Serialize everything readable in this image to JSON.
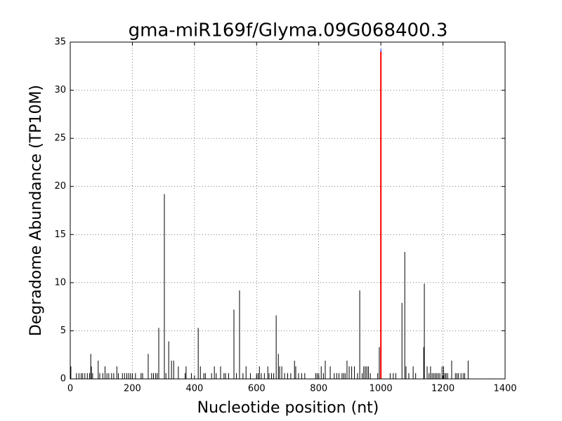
{
  "chart_data": {
    "type": "stem",
    "title": "gma-miR169f/Glyma.09G068400.3",
    "xlabel": "Nucleotide position (nt)",
    "ylabel": "Degradome Abundance (TP10M)",
    "xlim": [
      0,
      1400
    ],
    "xticks": [
      0,
      200,
      400,
      600,
      800,
      1000,
      1200,
      1400
    ],
    "ylim": [
      0,
      35
    ],
    "yticks": [
      0,
      5,
      10,
      15,
      20,
      25,
      30,
      35
    ],
    "grid": true,
    "series": [
      {
        "color": "#000000",
        "linewidth": 1,
        "x": [
          2,
          20,
          28,
          35,
          40,
          47,
          55,
          62,
          66,
          68,
          72,
          90,
          95,
          105,
          112,
          118,
          124,
          133,
          140,
          150,
          155,
          168,
          175,
          182,
          188,
          194,
          200,
          210,
          228,
          233,
          251,
          262,
          268,
          275,
          280,
          285,
          303,
          308,
          317,
          326,
          333,
          348,
          370,
          373,
          390,
          412,
          419,
          430,
          435,
          455,
          464,
          470,
          484,
          495,
          500,
          510,
          527,
          535,
          545,
          556,
          566,
          580,
          600,
          605,
          609,
          615,
          625,
          636,
          640,
          648,
          655,
          663,
          670,
          674,
          681,
          690,
          700,
          710,
          722,
          726,
          735,
          745,
          755,
          790,
          795,
          800,
          808,
          815,
          821,
          837,
          850,
          858,
          865,
          875,
          880,
          885,
          891,
          898,
          906,
          915,
          925,
          932,
          940,
          945,
          950,
          955,
          960,
          966,
          990,
          995,
          1030,
          1040,
          1048,
          1068,
          1077,
          1081,
          1090,
          1104,
          1112,
          1138,
          1140,
          1149,
          1155,
          1160,
          1165,
          1170,
          1175,
          1180,
          1185,
          1190,
          1197,
          1202,
          1206,
          1210,
          1215,
          1228,
          1240,
          1245,
          1250,
          1258,
          1265,
          1270,
          1281
        ],
        "values": [
          1.3,
          0.6,
          0.6,
          0.6,
          0.6,
          0.6,
          0.6,
          0.6,
          2.6,
          1.3,
          0.6,
          1.9,
          0.6,
          0.6,
          1.3,
          0.6,
          0.6,
          0.6,
          0.6,
          1.3,
          0.6,
          0.6,
          0.6,
          0.6,
          0.6,
          0.6,
          0.6,
          0.6,
          0.6,
          0.6,
          2.6,
          0.6,
          0.6,
          0.6,
          0.6,
          5.3,
          19.2,
          0.6,
          3.9,
          1.9,
          1.9,
          1.3,
          0.6,
          1.3,
          0.6,
          5.3,
          1.3,
          0.6,
          0.6,
          0.6,
          1.3,
          0.6,
          1.3,
          0.6,
          0.6,
          0.6,
          7.2,
          0.6,
          9.2,
          0.6,
          1.3,
          0.6,
          0.6,
          0.6,
          1.3,
          0.6,
          0.6,
          1.3,
          0.6,
          0.6,
          0.6,
          6.6,
          2.6,
          1.3,
          1.3,
          0.6,
          0.6,
          0.6,
          1.9,
          1.3,
          0.6,
          0.6,
          0.6,
          0.6,
          0.6,
          0.6,
          1.3,
          0.6,
          1.9,
          1.3,
          0.6,
          0.6,
          0.6,
          0.6,
          0.6,
          0.6,
          1.9,
          1.3,
          1.3,
          1.3,
          0.6,
          9.2,
          0.6,
          1.3,
          1.3,
          1.3,
          1.3,
          0.6,
          0.6,
          3.3,
          0.6,
          0.6,
          0.6,
          7.9,
          13.2,
          1.3,
          0.6,
          1.3,
          0.6,
          3.3,
          9.9,
          1.3,
          0.6,
          1.3,
          0.6,
          0.6,
          0.6,
          0.6,
          0.6,
          0.6,
          1.3,
          1.3,
          0.6,
          0.6,
          0.6,
          1.9,
          0.6,
          0.6,
          0.6,
          0.6,
          0.6,
          0.6,
          1.9
        ]
      },
      {
        "color": "#0000ff",
        "linewidth": 1,
        "x": [
          1000
        ],
        "values": [
          34.3
        ]
      },
      {
        "color": "#ff0000",
        "linewidth": 2,
        "x": [
          1000
        ],
        "values": [
          34.0
        ]
      }
    ]
  }
}
